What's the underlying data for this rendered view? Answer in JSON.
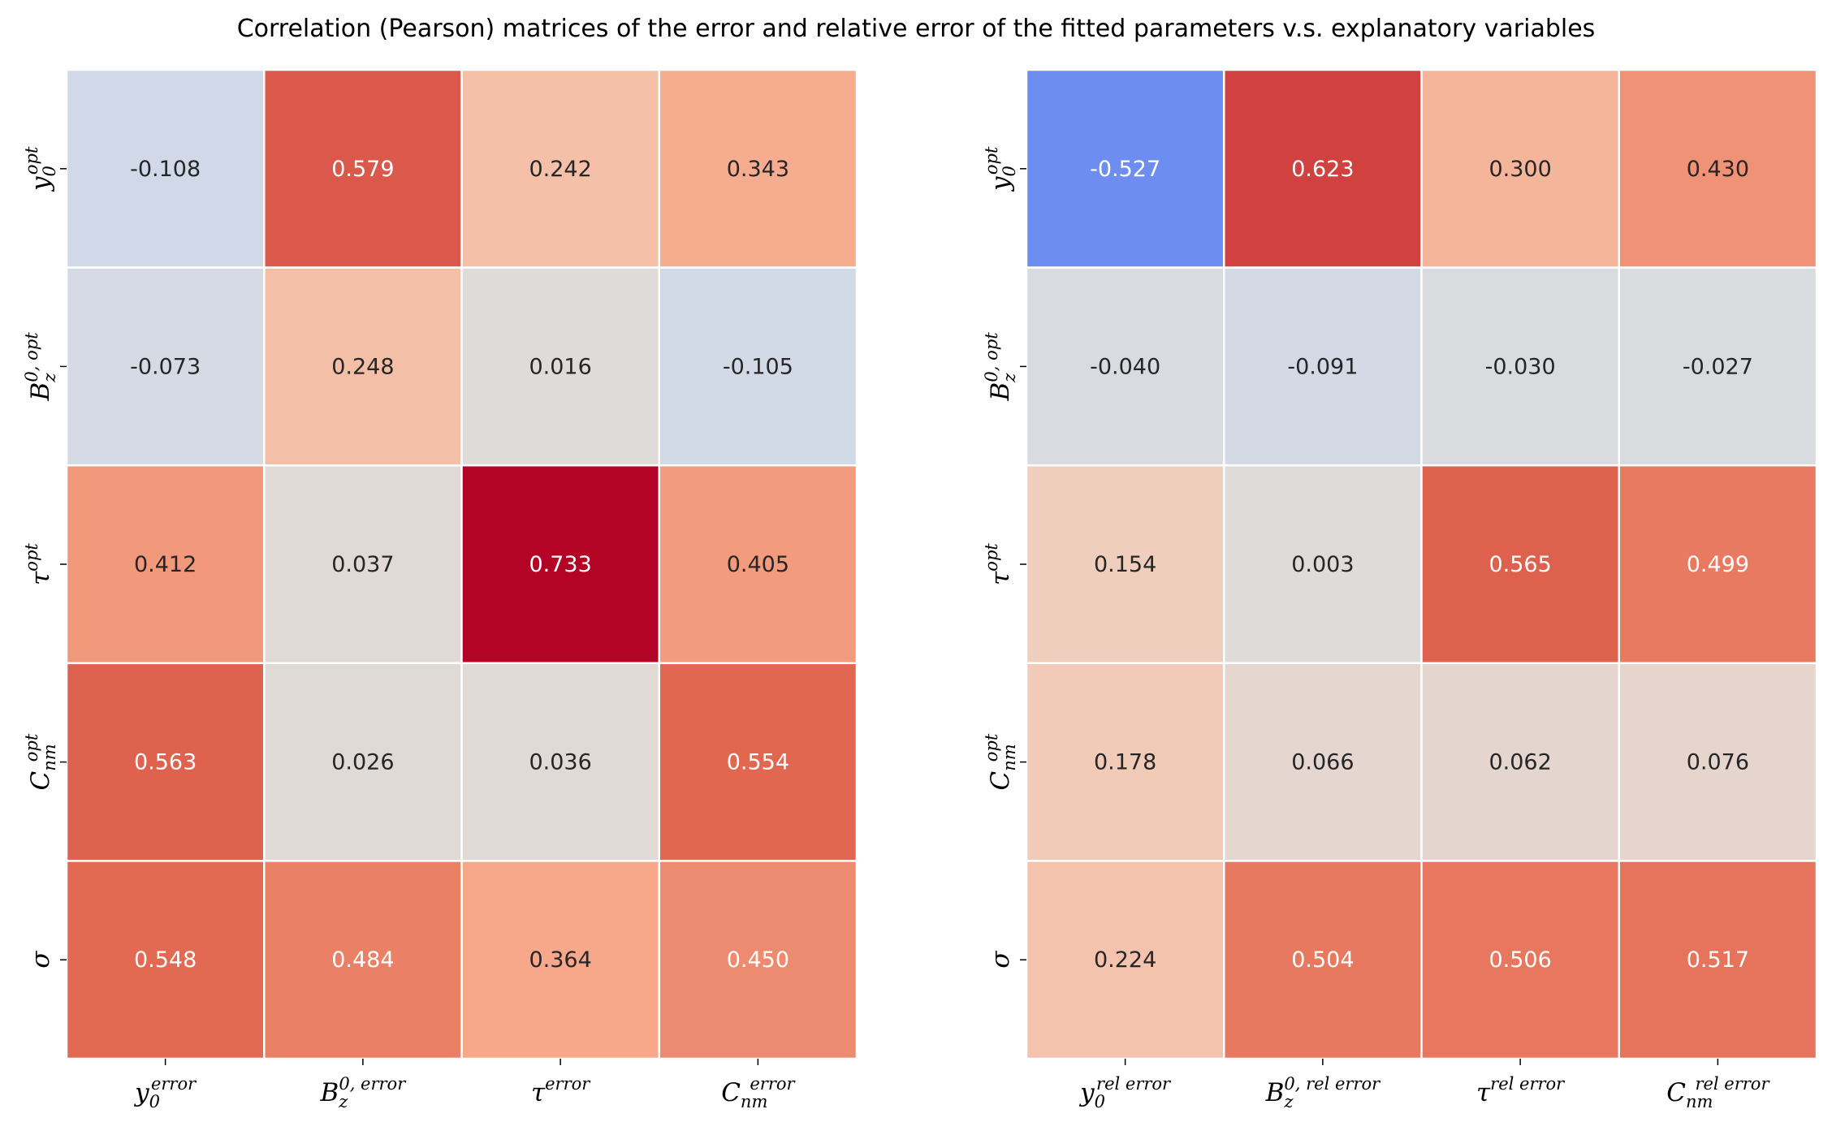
{
  "title": "Correlation (Pearson) matrices of the error and relative error of the fitted parameters v.s. explanatory variables",
  "colormap": {
    "name": "coolwarm",
    "vmin": -0.733,
    "vmax": 0.733,
    "stops": [
      "#3b4cc0",
      "#6788ee",
      "#9abbff",
      "#c9d7f0",
      "#dddcdc",
      "#f2cbb7",
      "#f7a889",
      "#e26952",
      "#b40426"
    ]
  },
  "chart_data": [
    {
      "type": "heatmap",
      "title": "",
      "row_labels": [
        {
          "base": "y",
          "sub": "0",
          "sup": "opt"
        },
        {
          "base": "B",
          "sub": "z",
          "sup": "0, opt"
        },
        {
          "base": "τ",
          "sub": "",
          "sup": "opt"
        },
        {
          "base": "C",
          "sub": "nm",
          "sup": "opt"
        },
        {
          "base": "σ",
          "sub": "",
          "sup": ""
        }
      ],
      "col_labels": [
        {
          "base": "y",
          "sub": "0",
          "sup": "error"
        },
        {
          "base": "B",
          "sub": "z",
          "sup": "0, error"
        },
        {
          "base": "τ",
          "sub": "",
          "sup": "error"
        },
        {
          "base": "C",
          "sub": "nm",
          "sup": "error"
        }
      ],
      "values": [
        [
          -0.108,
          0.579,
          0.242,
          0.343
        ],
        [
          -0.073,
          0.248,
          0.016,
          -0.105
        ],
        [
          0.412,
          0.037,
          0.733,
          0.405
        ],
        [
          0.563,
          0.026,
          0.036,
          0.554
        ],
        [
          0.548,
          0.484,
          0.364,
          0.45
        ]
      ],
      "value_labels": [
        [
          "-0.108",
          "0.579",
          "0.242",
          "0.343"
        ],
        [
          "-0.073",
          "0.248",
          "0.016",
          "-0.105"
        ],
        [
          "0.412",
          "0.037",
          "0.733",
          "0.405"
        ],
        [
          "0.563",
          "0.026",
          "0.036",
          "0.554"
        ],
        [
          "0.548",
          "0.484",
          "0.364",
          "0.450"
        ]
      ]
    },
    {
      "type": "heatmap",
      "title": "",
      "row_labels": [
        {
          "base": "y",
          "sub": "0",
          "sup": "opt"
        },
        {
          "base": "B",
          "sub": "z",
          "sup": "0, opt"
        },
        {
          "base": "τ",
          "sub": "",
          "sup": "opt"
        },
        {
          "base": "C",
          "sub": "nm",
          "sup": "opt"
        },
        {
          "base": "σ",
          "sub": "",
          "sup": ""
        }
      ],
      "col_labels": [
        {
          "base": "y",
          "sub": "0",
          "sup": "rel error"
        },
        {
          "base": "B",
          "sub": "z",
          "sup": "0, rel error"
        },
        {
          "base": "τ",
          "sub": "",
          "sup": "rel error"
        },
        {
          "base": "C",
          "sub": "nm",
          "sup": "rel error"
        }
      ],
      "values": [
        [
          -0.527,
          0.623,
          0.3,
          0.43
        ],
        [
          -0.04,
          -0.091,
          -0.03,
          -0.027
        ],
        [
          0.154,
          0.003,
          0.565,
          0.499
        ],
        [
          0.178,
          0.066,
          0.062,
          0.076
        ],
        [
          0.224,
          0.504,
          0.506,
          0.517
        ]
      ],
      "value_labels": [
        [
          "-0.527",
          "0.623",
          "0.300",
          "0.430"
        ],
        [
          "-0.040",
          "-0.091",
          "-0.030",
          "-0.027"
        ],
        [
          "0.154",
          "0.003",
          "0.565",
          "0.499"
        ],
        [
          "0.178",
          "0.066",
          "0.062",
          "0.076"
        ],
        [
          "0.224",
          "0.504",
          "0.506",
          "0.517"
        ]
      ]
    }
  ]
}
